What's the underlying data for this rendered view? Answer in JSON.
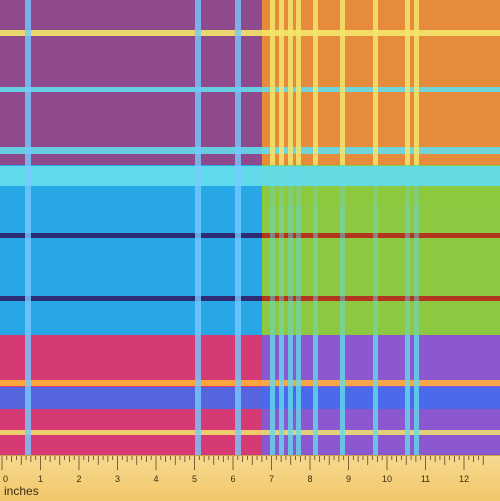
{
  "fabric": {
    "pattern": "plaid",
    "colors": {
      "purple_block": "#8e4a8c",
      "orange_block": "#e68b3c",
      "blue_block": "#27a7e6",
      "green_block": "#8cc940",
      "magenta_block": "#d53a74",
      "violet_block": "#8c58cf",
      "cyan_stripe": "#63dcea",
      "yellow_stripe": "#f3e56b",
      "navy_stripe": "#2d2b74",
      "red_stripe": "#b2361e",
      "light_blue_stripe": "#78c8ff",
      "royal_blue_band": "#3f6df0",
      "orange_thin_stripe": "#ffb13a"
    }
  },
  "ruler": {
    "unit": "inches",
    "numbers": [
      "0",
      "1",
      "2",
      "3",
      "4",
      "5",
      "6",
      "7",
      "8",
      "9",
      "10",
      "11",
      "12"
    ]
  }
}
